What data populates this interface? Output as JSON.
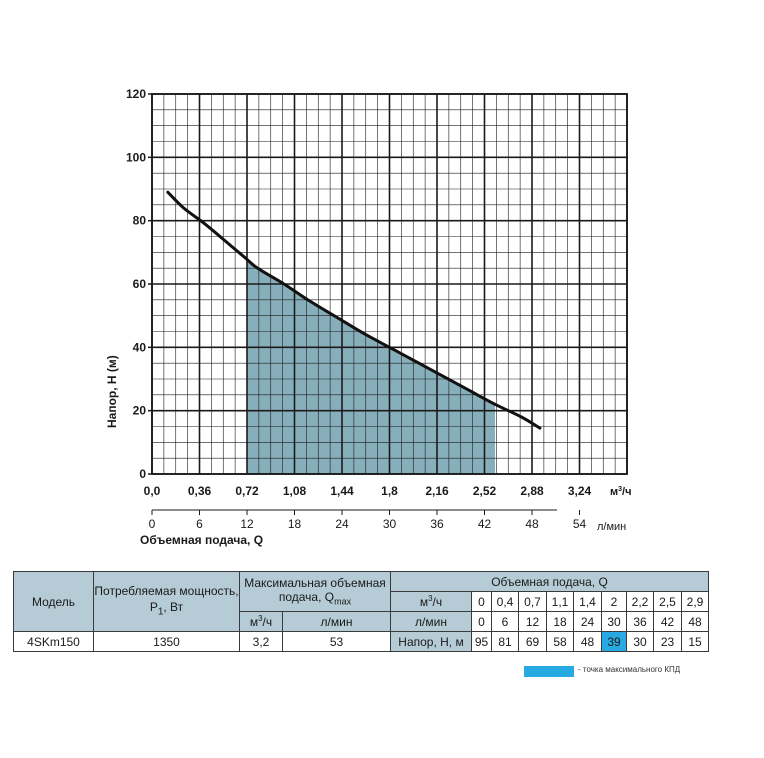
{
  "chart_data": {
    "type": "area",
    "xlabel": "Объемная подача, Q",
    "ylabel": "Напор, Н (м)",
    "xlim": [
      0,
      3.6
    ],
    "ylim": [
      0,
      120
    ],
    "x_ticks": [
      "0,0",
      "0,36",
      "0,72",
      "1,08",
      "1,44",
      "1,8",
      "2,16",
      "2,52",
      "2,88",
      "3,24"
    ],
    "x_unit": "м³/ч",
    "x2_ticks": [
      "0",
      "6",
      "12",
      "18",
      "24",
      "30",
      "36",
      "42",
      "48",
      "54"
    ],
    "x2_unit": "л/мин",
    "y_ticks": [
      "0",
      "20",
      "40",
      "60",
      "80",
      "100",
      "120"
    ],
    "curve": {
      "x": [
        0.12,
        0.24,
        0.4,
        0.6,
        0.7,
        0.8,
        1.0,
        1.2,
        1.4,
        1.6,
        1.8,
        2.0,
        2.2,
        2.4,
        2.6,
        2.8,
        2.94
      ],
      "y": [
        89,
        84,
        79,
        72,
        68.5,
        65,
        60,
        54.5,
        49.5,
        44.5,
        40,
        35.5,
        31,
        26.5,
        22,
        18,
        14.5
      ]
    },
    "efficiency_band": [
      0.72,
      2.6
    ],
    "grid": true,
    "colors": {
      "curve": "#111111",
      "fill": "#7aa6b4",
      "grid": "#1a1a1a"
    }
  },
  "table": {
    "h_model": "Модель",
    "h_power": "Потребляемая мощность, P",
    "h_power_sub": "1",
    "h_power_unit": ", Вт",
    "h_qmax": "Максимальная объемная подача, Q",
    "h_qmax_sub": "max",
    "h_qmax_m3": "м³/ч",
    "h_qmax_lmin": "л/мин",
    "h_flow": "Объемная подача, Q",
    "row_m3_label": "м³/ч",
    "row_lmin_label": "л/мин",
    "row_head_label": "Напор, Н, м",
    "flow_m3": [
      "0",
      "0,4",
      "0,7",
      "1,1",
      "1,4",
      "2",
      "2,2",
      "2,5",
      "2,9"
    ],
    "flow_lmin": [
      "0",
      "6",
      "12",
      "18",
      "24",
      "30",
      "36",
      "42",
      "48"
    ],
    "model": "4SKm150",
    "power": "1350",
    "qmax_m3": "3,2",
    "qmax_lmin": "53",
    "heads": [
      "95",
      "81",
      "69",
      "58",
      "48",
      "39",
      "30",
      "23",
      "15"
    ],
    "highlight_index": 5,
    "highlight_color": "#29a9e1"
  },
  "legend": {
    "text": "- точка максимального КПД"
  }
}
